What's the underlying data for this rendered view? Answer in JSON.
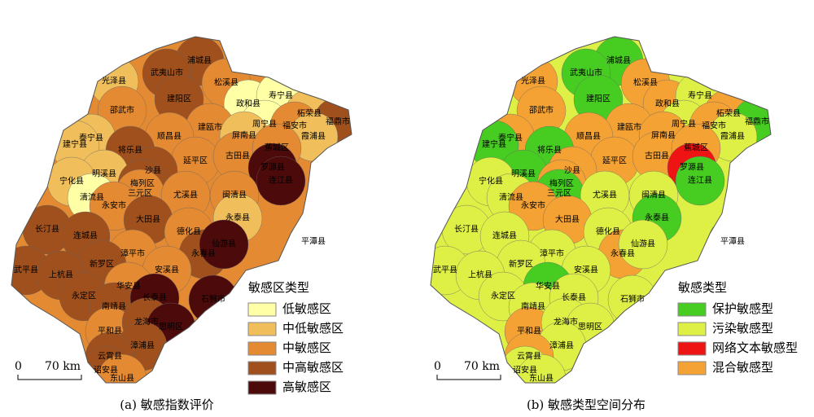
{
  "panels": [
    {
      "caption": "(a) 敏感指数评价",
      "legend_title": "敏感区类型",
      "legend_items": [
        {
          "label": "低敏感区",
          "color": "#ffffa6"
        },
        {
          "label": "中低敏感区",
          "color": "#f0bf5c"
        },
        {
          "label": "中敏感区",
          "color": "#e48a32"
        },
        {
          "label": "中高敏感区",
          "color": "#a0501c"
        },
        {
          "label": "高敏感区",
          "color": "#4d0a0a"
        }
      ],
      "scale_zero": "0",
      "scale_distance": "70 km",
      "labels": [
        "浦城县",
        "光泽县",
        "武夷山市",
        "松溪县",
        "建阳区",
        "政和县",
        "寿宁县",
        "柘荣县",
        "福鼎市",
        "邵武市",
        "建瓯市",
        "周宁县",
        "福安市",
        "霞浦县",
        "屏南县",
        "泰宁县",
        "顺昌县",
        "建宁县",
        "将乐县",
        "延平区",
        "古田县",
        "蕉城区",
        "罗源县",
        "明溪县",
        "沙县",
        "连江县",
        "宁化县",
        "梅列区",
        "三元区",
        "尤溪县",
        "闽清县",
        "清流县",
        "永安市",
        "大田县",
        "长汀县",
        "永泰县",
        "德化县",
        "连城县",
        "漳平市",
        "永春县",
        "仙游县",
        "新罗区",
        "武平县",
        "上杭县",
        "安溪县",
        "平潭县",
        "永定区",
        "华安县",
        "南靖县",
        "长泰县",
        "平和县",
        "龙海市",
        "思明区",
        "石狮市",
        "漳浦县",
        "云霄县",
        "诏安县",
        "东山县"
      ]
    },
    {
      "caption": "(b) 敏感类型空间分布",
      "legend_title": "敏感类型",
      "legend_items": [
        {
          "label": "保护敏感型",
          "color": "#47cc22"
        },
        {
          "label": "污染敏感型",
          "color": "#def046"
        },
        {
          "label": "网络文本敏感型",
          "color": "#ee1414"
        },
        {
          "label": "混合敏感型",
          "color": "#f5a234"
        }
      ],
      "scale_zero": "0",
      "scale_distance": "70 km",
      "labels": [
        "浦城县",
        "光泽县",
        "武夷山市",
        "松溪县",
        "建阳区",
        "政和县",
        "寿宁县",
        "柘荣县",
        "福鼎市",
        "邵武市",
        "建瓯市",
        "周宁县",
        "福安市",
        "霞浦县",
        "屏南县",
        "泰宁县",
        "顺昌县",
        "建宁县",
        "将乐县",
        "延平区",
        "古田县",
        "蕉城区",
        "罗源县",
        "明溪县",
        "沙县",
        "连江县",
        "宁化县",
        "梅列区",
        "三元区",
        "尤溪县",
        "闽清县",
        "清流县",
        "永安市",
        "大田县",
        "长汀县",
        "永泰县",
        "德化县",
        "连城县",
        "漳平市",
        "永春县",
        "仙游县",
        "新罗区",
        "武平县",
        "上杭县",
        "安溪县",
        "平潭县",
        "永定区",
        "华安县",
        "南靖县",
        "长泰县",
        "平和县",
        "龙海市",
        "思明区",
        "石狮市",
        "漳浦县",
        "云霄县",
        "诏安县",
        "东山县"
      ]
    }
  ]
}
